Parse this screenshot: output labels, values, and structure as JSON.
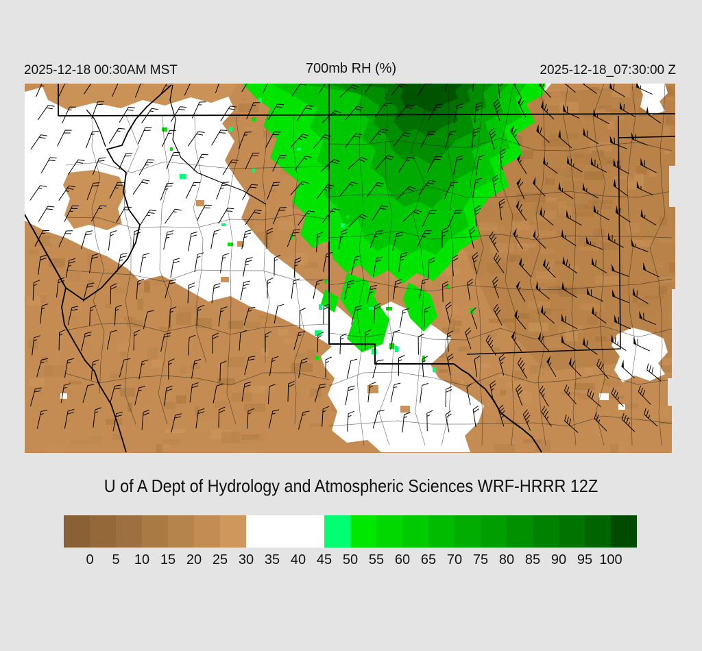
{
  "header": {
    "left_timestamp": "2025-12-18 00:30AM MST",
    "title": "700mb RH (%)",
    "right_timestamp": "2025-12-18_07:30:00 Z"
  },
  "caption": "U of A Dept of Hydrology and Atmospheric Sciences WRF-HRRR 12Z",
  "colorbar": {
    "tick_labels": [
      "0",
      "5",
      "10",
      "15",
      "20",
      "25",
      "30",
      "35",
      "40",
      "45",
      "50",
      "55",
      "60",
      "65",
      "70",
      "75",
      "80",
      "85",
      "90",
      "95",
      "100"
    ],
    "segment_colors": [
      "#8a6134",
      "#946839",
      "#9e703f",
      "#aa7a45",
      "#b5834c",
      "#c28c53",
      "#d0975c",
      "#ffffff",
      "#ffffff",
      "#ffffff",
      "#00ff73",
      "#00e800",
      "#00d800",
      "#00ca00",
      "#00bb00",
      "#00ad00",
      "#009e00",
      "#009000",
      "#008100",
      "#007300",
      "#006400",
      "#004b00"
    ]
  },
  "chart_data": {
    "type": "heatmap",
    "title": "700mb RH (%)",
    "units": "%",
    "colorbar_ticks": [
      0,
      5,
      10,
      15,
      20,
      25,
      30,
      35,
      40,
      45,
      50,
      55,
      60,
      65,
      70,
      75,
      80,
      85,
      90,
      95,
      100
    ],
    "legend_position": "bottom"
  },
  "map": {
    "land_base_color": "#c48c52",
    "land_dark_color": "#b07a41",
    "dry_patch_color": "#cb9257",
    "moist_color": "#00c800",
    "saturated_band_color": "#ffffff",
    "barb_color": "#000000",
    "border_color": "#000000"
  }
}
